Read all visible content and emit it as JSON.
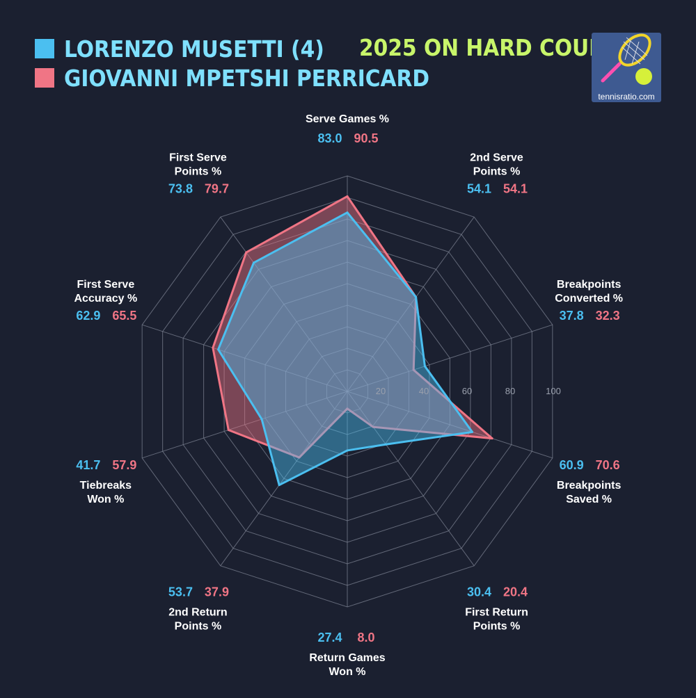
{
  "legend": [
    {
      "name": "LORENZO MUSETTI (4)",
      "color": "#4bbff0"
    },
    {
      "name": "GIOVANNI MPETSHI PERRICARD",
      "color": "#f07585"
    }
  ],
  "headline": "2025 ON HARD COURTS",
  "logo": {
    "text": "tennisratio.com"
  },
  "colors": {
    "background": "#1b2030",
    "grid": "#7b8090",
    "headline": "#c8f56a",
    "legend_text": "#7fe0ff",
    "axis_label": "#ffffff",
    "tick": "#9aa0ad"
  },
  "chart_data": {
    "type": "radar",
    "range": [
      0,
      100
    ],
    "ticks": [
      20,
      40,
      60,
      80,
      100
    ],
    "axes": [
      {
        "label": [
          "Serve Games %"
        ]
      },
      {
        "label": [
          "2nd Serve",
          "Points %"
        ]
      },
      {
        "label": [
          "Breakpoints",
          "Converted %"
        ]
      },
      {
        "label": [
          "Breakpoints",
          "Saved %"
        ]
      },
      {
        "label": [
          "First Return",
          "Points %"
        ]
      },
      {
        "label": [
          "Return Games",
          "Won %"
        ]
      },
      {
        "label": [
          "2nd Return",
          "Points %"
        ]
      },
      {
        "label": [
          "Tiebreaks",
          "Won %"
        ]
      },
      {
        "label": [
          "First Serve",
          "Accuracy %"
        ]
      },
      {
        "label": [
          "First Serve",
          "Points %"
        ]
      }
    ],
    "series": [
      {
        "name": "LORENZO MUSETTI (4)",
        "color": "#4bbff0",
        "values": [
          83.0,
          54.1,
          37.8,
          60.9,
          30.4,
          27.4,
          53.7,
          41.7,
          62.9,
          73.8
        ]
      },
      {
        "name": "GIOVANNI MPETSHI PERRICARD",
        "color": "#f07585",
        "values": [
          90.5,
          54.1,
          32.3,
          70.6,
          20.4,
          8.0,
          37.9,
          57.9,
          65.5,
          79.7
        ]
      }
    ]
  }
}
